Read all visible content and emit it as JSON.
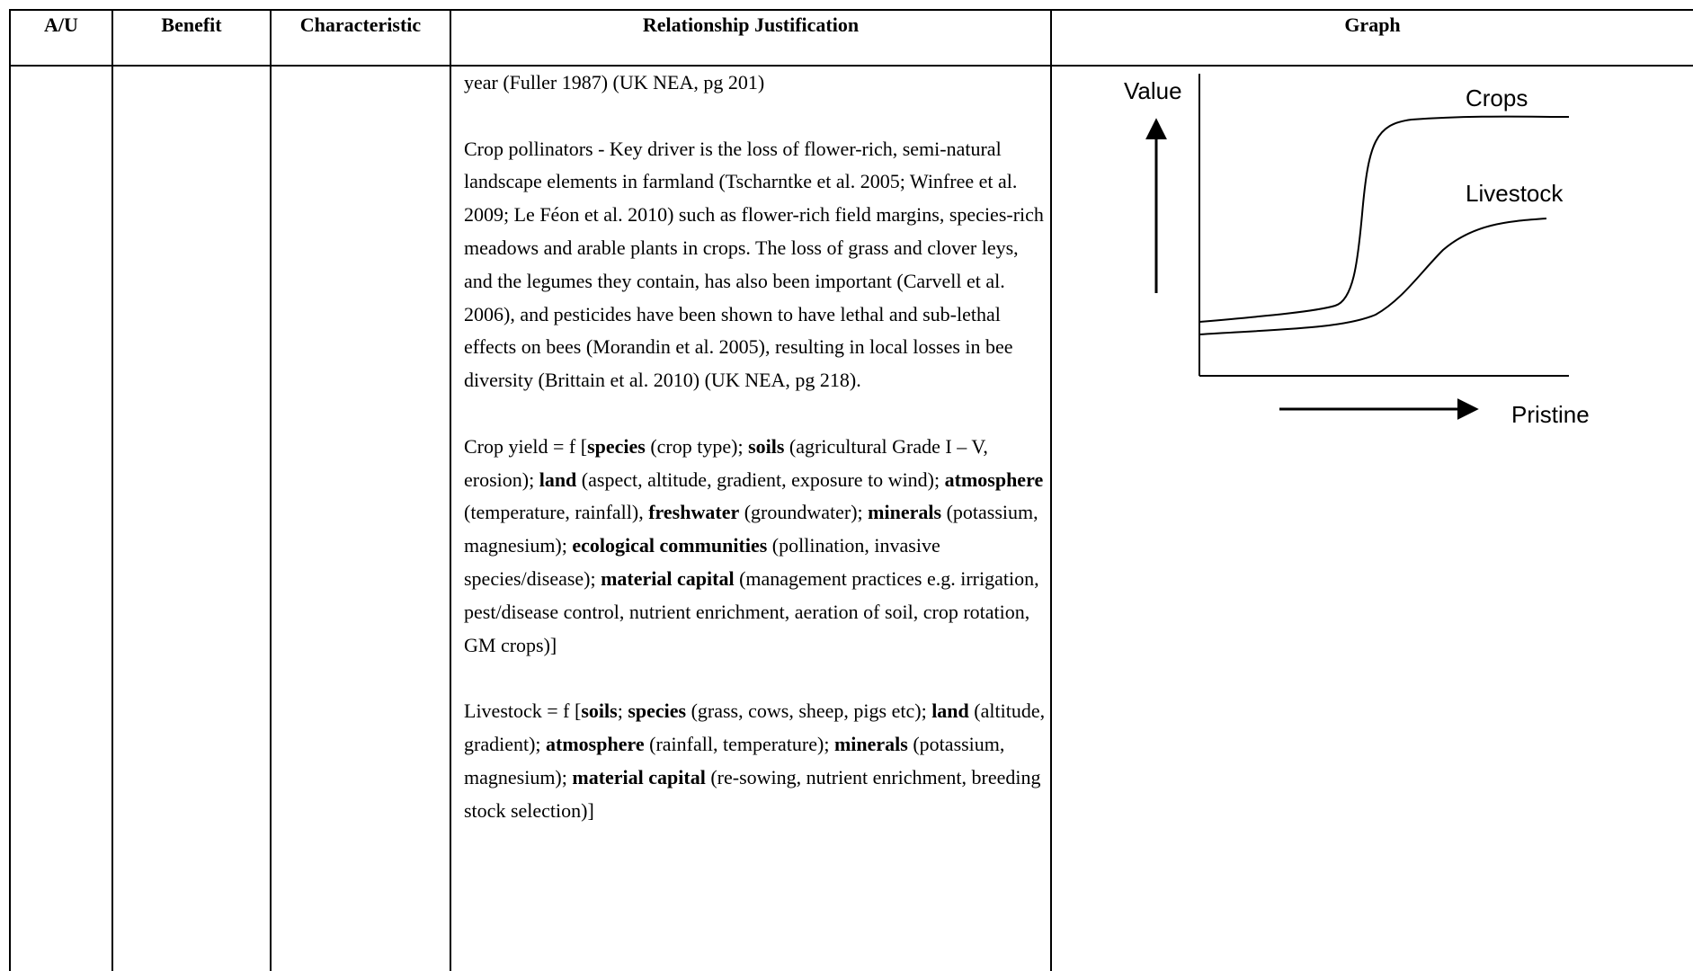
{
  "table": {
    "headers": {
      "au": "A/U",
      "benefit": "Benefit",
      "characteristic": "Characteristic",
      "justification": "Relationship Justification",
      "graph": "Graph"
    },
    "row": {
      "justification": [
        [
          {
            "t": "year (Fuller 1987) (UK NEA, pg 201)"
          }
        ],
        [
          {
            "t": "Crop pollinators - Key driver is the loss of flower-rich, semi-natural landscape elements in farmland (Tscharntke et al. 2005; Winfree et al. 2009; Le Féon et al. 2010) such as flower-rich field margins, species-rich meadows and arable plants in crops. The loss of grass and clover leys, and the legumes they contain, has also been important (Carvell et al. 2006), and pesticides have been shown to have lethal and sub-lethal effects on bees (Morandin et al. 2005), resulting in local losses in bee diversity (Brittain et al. 2010) (UK NEA, pg 218)."
          }
        ],
        [
          {
            "t": "Crop yield = f ["
          },
          {
            "t": "species",
            "b": true
          },
          {
            "t": " (crop type); "
          },
          {
            "t": "soils",
            "b": true
          },
          {
            "t": " (agricultural Grade I – V, erosion); "
          },
          {
            "t": "land",
            "b": true
          },
          {
            "t": " (aspect, altitude, gradient, exposure to wind); "
          },
          {
            "t": "atmosphere",
            "b": true
          },
          {
            "t": " (temperature, rainfall), "
          },
          {
            "t": "freshwater",
            "b": true
          },
          {
            "t": " (groundwater); "
          },
          {
            "t": "minerals",
            "b": true
          },
          {
            "t": " (potassium, magnesium); "
          },
          {
            "t": "ecological communities",
            "b": true
          },
          {
            "t": " (pollination, invasive species/disease); "
          },
          {
            "t": "material capital",
            "b": true
          },
          {
            "t": " (management practices e.g. irrigation, pest/disease control, nutrient enrichment, aeration of soil, crop rotation, GM crops)]"
          }
        ],
        [
          {
            "t": "Livestock = f ["
          },
          {
            "t": "soils",
            "b": true
          },
          {
            "t": "; "
          },
          {
            "t": "species",
            "b": true
          },
          {
            "t": " (grass, cows, sheep, pigs etc); "
          },
          {
            "t": "land",
            "b": true
          },
          {
            "t": " (altitude, gradient); "
          },
          {
            "t": "atmosphere",
            "b": true
          },
          {
            "t": " (rainfall, temperature); "
          },
          {
            "t": "minerals",
            "b": true
          },
          {
            "t": " (potassium, magnesium); "
          },
          {
            "t": "material capital",
            "b": true
          },
          {
            "t": " (re-sowing, nutrient enrichment, breeding stock selection)]"
          }
        ]
      ]
    }
  },
  "graph": {
    "y_label": "Value",
    "x_label": "Pristine",
    "series": [
      {
        "name": "Crops",
        "shape": "sharp sigmoid rise, high plateau"
      },
      {
        "name": "Livestock",
        "shape": "gradual sigmoid rise, lower plateau"
      }
    ],
    "line_color": "#000000"
  }
}
